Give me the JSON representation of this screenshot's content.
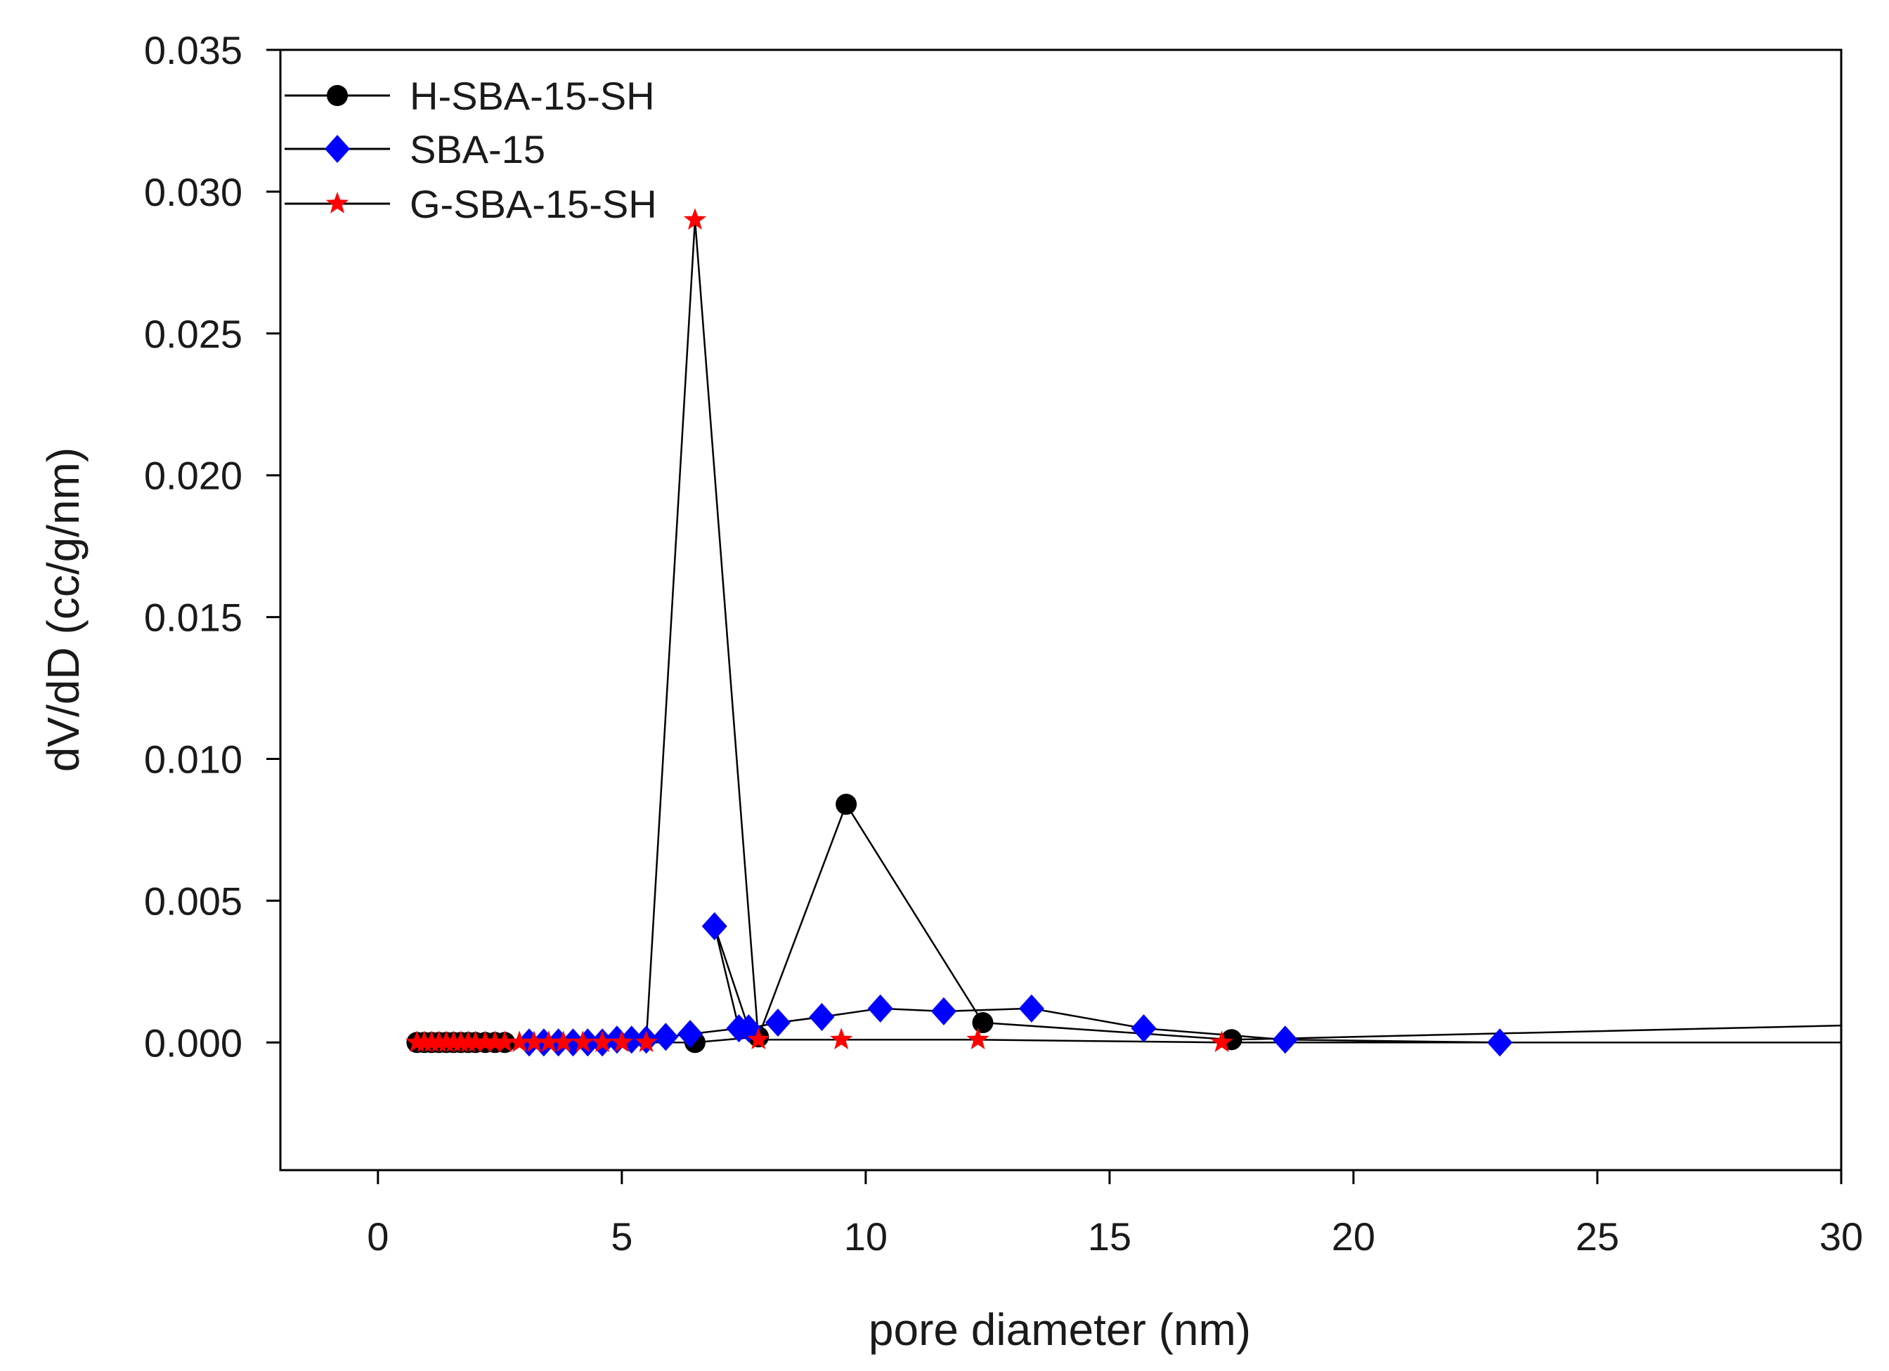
{
  "chart_data": {
    "type": "line",
    "title": "",
    "xlabel": "pore diameter (nm)",
    "ylabel": "dV/dD (cc/g/nm)",
    "xlim": [
      -2,
      30
    ],
    "ylim": [
      -0.0045,
      0.035
    ],
    "xticks": [
      0,
      5,
      10,
      15,
      20,
      25,
      30
    ],
    "xtick_labels": [
      "0",
      "5",
      "10",
      "15",
      "20",
      "25",
      "30"
    ],
    "yticks": [
      0,
      0.005,
      0.01,
      0.015,
      0.02,
      0.025,
      0.03,
      0.035
    ],
    "ytick_labels": [
      "0.000",
      "0.005",
      "0.010",
      "0.015",
      "0.020",
      "0.025",
      "0.030",
      "0.035"
    ],
    "legend_position": "top-left",
    "series": [
      {
        "name": "H-SBA-15-SH",
        "marker": "circle",
        "color": "#000000",
        "x": [
          0.8,
          0.95,
          1.1,
          1.25,
          1.4,
          1.55,
          1.7,
          1.85,
          2.0,
          2.2,
          2.4,
          2.6,
          6.5,
          7.8,
          9.6,
          12.4,
          17.5,
          30
        ],
        "y": [
          0.0,
          0.0,
          0.0,
          0.0,
          0.0,
          0.0,
          0.0,
          0.0,
          0.0,
          0.0,
          0.0,
          0.0,
          0.0,
          0.0002,
          0.0084,
          0.0007,
          0.0001,
          0.0006
        ]
      },
      {
        "name": "SBA-15",
        "marker": "diamond",
        "color": "#0000ff",
        "x": [
          3.1,
          3.4,
          3.7,
          4.0,
          4.3,
          4.6,
          4.9,
          5.2,
          5.5,
          5.9,
          6.4,
          7.4,
          6.9,
          7.6,
          8.2,
          9.1,
          10.3,
          11.6,
          13.4,
          15.7,
          18.6,
          23.0
        ],
        "y": [
          0.0,
          0.0,
          0.0,
          0.0,
          0.0,
          0.0,
          0.0001,
          0.0001,
          0.0001,
          0.0002,
          0.0003,
          0.0005,
          0.0041,
          0.0005,
          0.0007,
          0.0009,
          0.0012,
          0.0011,
          0.0012,
          0.0005,
          0.0001,
          0.0
        ]
      },
      {
        "name": "G-SBA-15-SH",
        "marker": "star",
        "color": "#ff0000",
        "x": [
          0.8,
          0.95,
          1.1,
          1.25,
          1.4,
          1.55,
          1.7,
          1.85,
          2.0,
          2.2,
          2.4,
          2.6,
          2.9,
          3.2,
          3.5,
          3.8,
          4.2,
          4.6,
          5.0,
          5.5,
          6.5,
          7.8,
          9.5,
          12.3,
          17.3,
          30
        ],
        "y": [
          0.0,
          0.0,
          0.0,
          0.0,
          0.0,
          0.0,
          0.0,
          0.0,
          0.0,
          0.0,
          0.0,
          0.0,
          0.0,
          0.0,
          0.0,
          0.0,
          0.0,
          0.0,
          0.0,
          0.0,
          0.029,
          0.0001,
          0.0001,
          0.0001,
          0.0,
          0.0
        ]
      }
    ]
  }
}
